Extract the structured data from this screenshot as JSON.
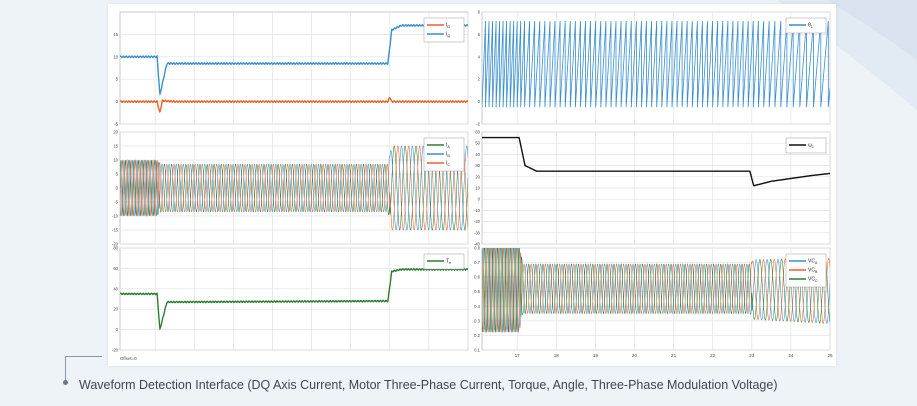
{
  "caption": "Waveform Detection Interface (DQ Axis Current, Motor Three-Phase Current, Torque, Angle, Three-Phase Modulation Voltage)",
  "offset_label": "Offset=0",
  "colors": {
    "blue": "#3a8fd0",
    "orange": "#e8622c",
    "green": "#2e7d32",
    "black": "#111111",
    "grid": "#e2e2e2"
  },
  "chart_data": [
    {
      "type": "line",
      "xlim": [
        16.1,
        25
      ],
      "ylim": [
        -5,
        20
      ],
      "yticks": [
        -5,
        0,
        5,
        10,
        15
      ],
      "grid": true,
      "legend": "top-right",
      "series": [
        {
          "name": "I_D",
          "color": "orange",
          "x": [
            16.1,
            17.05,
            17.12,
            17.18,
            17.5,
            22.95,
            23.0,
            23.05,
            25
          ],
          "y": [
            0,
            0,
            -2.5,
            0.2,
            0,
            0,
            1,
            0,
            0
          ]
        },
        {
          "name": "I_Q",
          "color": "blue",
          "x": [
            16.1,
            17.05,
            17.12,
            17.3,
            22.95,
            23.05,
            23.3,
            25
          ],
          "y": [
            10,
            10,
            1.5,
            8.5,
            8.5,
            16,
            17,
            17
          ]
        }
      ]
    },
    {
      "type": "line",
      "xlim": [
        16.1,
        25
      ],
      "ylim": [
        -2,
        8
      ],
      "yticks": [
        -2,
        0,
        2,
        4,
        6,
        8
      ],
      "grid": true,
      "legend": "top-right",
      "series": [
        {
          "name": "θ_1",
          "color": "blue",
          "form": "sawtooth",
          "min": -0.5,
          "max": 7.2,
          "x": [
            16.1,
            17.05,
            17.2,
            23.0,
            25
          ],
          "period": [
            0.09,
            0.09,
            0.13,
            0.13,
            0.2
          ]
        }
      ]
    },
    {
      "type": "line",
      "xlim": [
        16.1,
        25
      ],
      "ylim": [
        -20,
        20
      ],
      "yticks": [
        -20,
        -15,
        -10,
        -5,
        0,
        5,
        10,
        15,
        20
      ],
      "grid": true,
      "legend": "top-right",
      "series": [
        {
          "name": "I_A",
          "color": "green"
        },
        {
          "name": "I_B",
          "color": "blue"
        },
        {
          "name": "I_C",
          "color": "orange"
        }
      ],
      "envelope": {
        "x": [
          16.1,
          17.05,
          17.15,
          22.95,
          23.05,
          25
        ],
        "amp": [
          10,
          10,
          8.5,
          8.5,
          15,
          15
        ]
      }
    },
    {
      "type": "line",
      "xlim": [
        16.1,
        25
      ],
      "ylim": [
        -40,
        60
      ],
      "yticks": [
        -40,
        -30,
        -20,
        -10,
        0,
        10,
        20,
        30,
        40,
        50,
        60
      ],
      "grid": true,
      "legend": "top-right",
      "series": [
        {
          "name": "ω_1",
          "color": "black",
          "x": [
            16.1,
            17.05,
            17.2,
            17.5,
            22.95,
            23.05,
            23.5,
            24.5,
            25
          ],
          "y": [
            55,
            55,
            30,
            25,
            25,
            12,
            16,
            21,
            23
          ]
        }
      ]
    },
    {
      "type": "line",
      "xlim": [
        16.1,
        25
      ],
      "ylim": [
        -20,
        80
      ],
      "yticks": [
        -20,
        0,
        20,
        40,
        60,
        80
      ],
      "grid": true,
      "legend": "top-right",
      "series": [
        {
          "name": "T_e",
          "color": "green",
          "x": [
            16.1,
            17.05,
            17.12,
            17.3,
            22.95,
            23.05,
            23.3,
            25
          ],
          "y": [
            35,
            35,
            0,
            27,
            28,
            57,
            59,
            59
          ]
        }
      ]
    },
    {
      "type": "line",
      "xlim": [
        16.1,
        25
      ],
      "ylim": [
        0.1,
        0.8
      ],
      "yticks": [
        0.1,
        0.2,
        0.3,
        0.4,
        0.5,
        0.6,
        0.7,
        0.8
      ],
      "grid": true,
      "legend": "top-right",
      "xticks": [
        17,
        18,
        19,
        20,
        21,
        22,
        23,
        24,
        25
      ],
      "series": [
        {
          "name": "VC_A",
          "color": "blue"
        },
        {
          "name": "VC_B",
          "color": "orange"
        },
        {
          "name": "VC_C",
          "color": "green"
        }
      ],
      "envelope": {
        "x": [
          16.1,
          17.05,
          17.15,
          22.95,
          23.05,
          25
        ],
        "hi": [
          0.82,
          0.82,
          0.69,
          0.69,
          0.72,
          0.73
        ],
        "lo": [
          0.22,
          0.22,
          0.35,
          0.35,
          0.31,
          0.28
        ]
      }
    }
  ]
}
